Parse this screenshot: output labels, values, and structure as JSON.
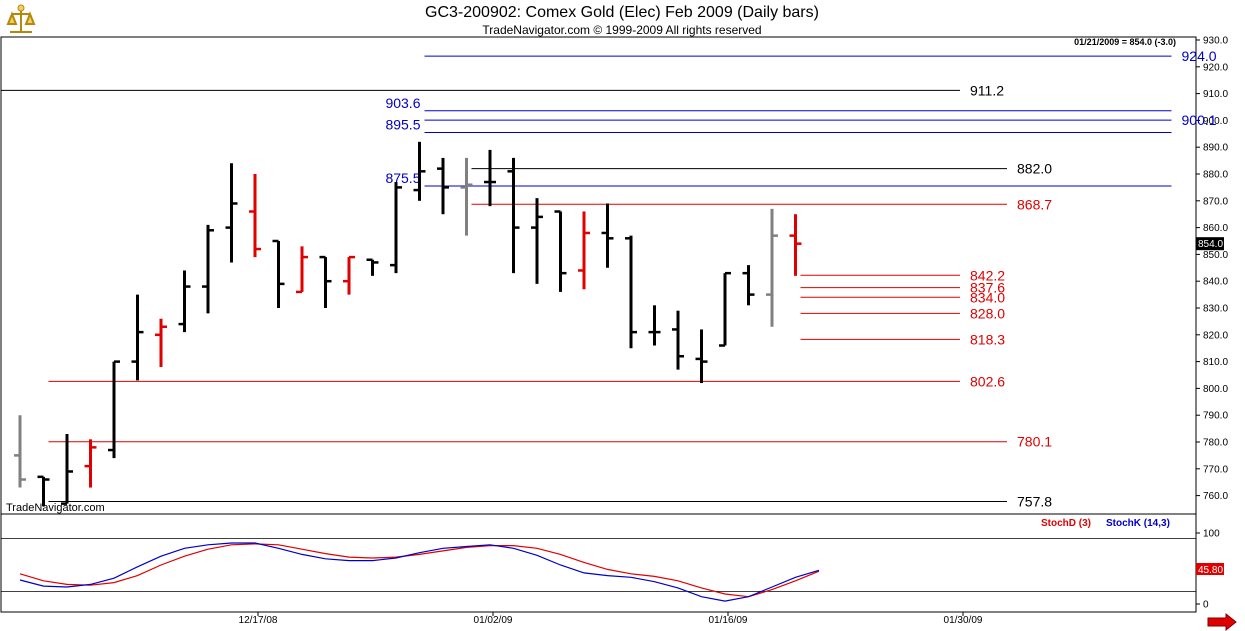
{
  "header": {
    "title": "GC3-200902:  Comex Gold (Elec) Feb 2009  (Daily bars)",
    "subtitle": "TradeNavigator.com © 1999-2009 All rights reserved",
    "watermark": "TradeNavigator.com",
    "quote_readout": "01/21/2009 = 854.0 (-3.0)"
  },
  "colors": {
    "up_bar": "#000000",
    "down_bar": "#e00000",
    "neutral_bar": "#808080",
    "blue_level": "#0000c8",
    "red_level": "#e00000",
    "black_level": "#000000",
    "stoch_d": "#e00000",
    "stoch_k": "#0000c8"
  },
  "chart_data": [
    {
      "type": "ohlc",
      "y_axis_ticks": [
        "930.0",
        "920.0",
        "910.0",
        "900.0",
        "890.0",
        "880.0",
        "870.0",
        "860.0",
        "850.0",
        "840.0",
        "830.0",
        "820.0",
        "810.0",
        "800.0",
        "790.0",
        "780.0",
        "770.0",
        "760.0"
      ],
      "ylim": [
        755,
        933
      ],
      "last_price_label": "854.0",
      "x_date_labels": [
        "12/17/08",
        "01/02/09",
        "01/16/09",
        "01/30/09"
      ],
      "bars": [
        {
          "o": 775,
          "h": 790,
          "l": 763,
          "c": 766,
          "color": "neutral"
        },
        {
          "o": 767,
          "h": 767,
          "l": 756,
          "c": 766,
          "color": "up"
        },
        {
          "o": 757,
          "h": 783,
          "l": 757,
          "c": 769,
          "color": "up"
        },
        {
          "o": 771,
          "h": 781,
          "l": 763,
          "c": 778,
          "color": "down"
        },
        {
          "o": 777,
          "h": 810,
          "l": 774,
          "c": 810,
          "color": "up"
        },
        {
          "o": 810,
          "h": 835,
          "l": 803,
          "c": 821,
          "color": "up"
        },
        {
          "o": 820,
          "h": 826,
          "l": 808,
          "c": 823,
          "color": "down"
        },
        {
          "o": 824,
          "h": 844,
          "l": 821,
          "c": 838,
          "color": "up"
        },
        {
          "o": 838,
          "h": 861,
          "l": 828,
          "c": 859,
          "color": "up"
        },
        {
          "o": 860,
          "h": 884,
          "l": 847,
          "c": 869,
          "color": "up"
        },
        {
          "o": 866,
          "h": 880,
          "l": 849,
          "c": 852,
          "color": "down"
        },
        {
          "o": 855,
          "h": 855,
          "l": 830,
          "c": 839,
          "color": "up"
        },
        {
          "o": 836,
          "h": 853,
          "l": 836,
          "c": 849,
          "color": "down"
        },
        {
          "o": 849,
          "h": 849,
          "l": 830,
          "c": 840,
          "color": "up"
        },
        {
          "o": 840,
          "h": 849,
          "l": 835,
          "c": 849,
          "color": "down"
        },
        {
          "o": 848,
          "h": 848,
          "l": 842,
          "c": 847,
          "color": "up"
        },
        {
          "o": 846,
          "h": 877,
          "l": 843,
          "c": 875,
          "color": "up"
        },
        {
          "o": 874,
          "h": 892,
          "l": 870,
          "c": 881,
          "color": "up"
        },
        {
          "o": 882,
          "h": 886,
          "l": 865,
          "c": 875,
          "color": "up"
        },
        {
          "o": 875,
          "h": 886,
          "l": 857,
          "c": 876,
          "color": "neutral"
        },
        {
          "o": 877,
          "h": 889,
          "l": 868,
          "c": 877,
          "color": "up"
        },
        {
          "o": 881,
          "h": 886,
          "l": 843,
          "c": 860,
          "color": "up"
        },
        {
          "o": 860,
          "h": 871,
          "l": 839,
          "c": 864,
          "color": "up"
        },
        {
          "o": 866,
          "h": 866,
          "l": 836,
          "c": 843,
          "color": "up"
        },
        {
          "o": 844,
          "h": 866,
          "l": 837,
          "c": 858,
          "color": "down"
        },
        {
          "o": 858,
          "h": 869,
          "l": 845,
          "c": 856,
          "color": "up"
        },
        {
          "o": 856,
          "h": 857,
          "l": 815,
          "c": 821,
          "color": "up"
        },
        {
          "o": 821,
          "h": 831,
          "l": 816,
          "c": 821,
          "color": "up"
        },
        {
          "o": 822,
          "h": 829,
          "l": 807,
          "c": 812,
          "color": "up"
        },
        {
          "o": 811,
          "h": 822,
          "l": 802,
          "c": 810,
          "color": "up"
        },
        {
          "o": 816,
          "h": 843,
          "l": 816,
          "c": 843,
          "color": "up"
        },
        {
          "o": 843,
          "h": 846,
          "l": 831,
          "c": 835,
          "color": "up"
        },
        {
          "o": 835,
          "h": 867,
          "l": 823,
          "c": 857,
          "color": "neutral"
        },
        {
          "o": 857,
          "h": 865,
          "l": 842,
          "c": 854,
          "color": "down"
        }
      ],
      "levels": [
        {
          "value": 924.0,
          "label": "924.0",
          "color": "blue",
          "x_start_bar": 17,
          "x_end_bar": 49
        },
        {
          "value": 911.2,
          "label": "911.2",
          "color": "black",
          "x_start_bar": -1,
          "x_end_bar": 40
        },
        {
          "value": 903.6,
          "label": "903.6",
          "label_side": "left",
          "color": "blue",
          "x_start_bar": 17,
          "x_end_bar": 49
        },
        {
          "value": 900.1,
          "label": "900.1",
          "color": "blue",
          "x_start_bar": 17,
          "x_end_bar": 49
        },
        {
          "value": 895.5,
          "label": "895.5",
          "label_side": "left",
          "color": "blue",
          "x_start_bar": 17,
          "x_end_bar": 49
        },
        {
          "value": 882.0,
          "label": "882.0",
          "color": "black",
          "x_start_bar": 19,
          "x_end_bar": 42
        },
        {
          "value": 875.5,
          "label": "875.5",
          "label_side": "left",
          "color": "blue",
          "x_start_bar": 17,
          "x_end_bar": 49
        },
        {
          "value": 868.7,
          "label": "868.7",
          "color": "red",
          "x_start_bar": 19,
          "x_end_bar": 42
        },
        {
          "value": 842.2,
          "label": "842.2",
          "color": "red",
          "x_start_bar": 33,
          "x_end_bar": 40
        },
        {
          "value": 837.6,
          "label": "837.6",
          "color": "red",
          "x_start_bar": 33,
          "x_end_bar": 40
        },
        {
          "value": 834.0,
          "label": "834.0",
          "color": "red",
          "x_start_bar": 33,
          "x_end_bar": 40
        },
        {
          "value": 828.0,
          "label": "828.0",
          "color": "red",
          "x_start_bar": 33,
          "x_end_bar": 40
        },
        {
          "value": 818.3,
          "label": "818.3",
          "color": "red",
          "x_start_bar": 33,
          "x_end_bar": 40
        },
        {
          "value": 802.6,
          "label": "802.6",
          "color": "red",
          "x_start_bar": 1,
          "x_end_bar": 40
        },
        {
          "value": 780.1,
          "label": "780.1",
          "color": "red",
          "x_start_bar": 1,
          "x_end_bar": 42
        },
        {
          "value": 757.8,
          "label": "757.8",
          "color": "black",
          "x_start_bar": 1,
          "x_end_bar": 42
        }
      ]
    },
    {
      "type": "line",
      "title": "",
      "legend": [
        {
          "name": "StochD (3)",
          "color": "red"
        },
        {
          "name": "StochK (14,3)",
          "color": "blue"
        }
      ],
      "y_axis_ticks": [
        "100",
        "0"
      ],
      "ylim": [
        0,
        100
      ],
      "reference_lines": [
        80,
        20
      ],
      "last_value_labels": [
        "45.80"
      ],
      "series": [
        {
          "name": "StochD (3)",
          "values": [
            40,
            32,
            28,
            27,
            30,
            38,
            50,
            60,
            68,
            73,
            74,
            73,
            68,
            63,
            59,
            58,
            59,
            62,
            66,
            70,
            72,
            72,
            69,
            62,
            53,
            45,
            40,
            37,
            32,
            24,
            17,
            14,
            22,
            32,
            43
          ]
        },
        {
          "name": "StochK (14,3)",
          "values": [
            33,
            26,
            25,
            28,
            35,
            48,
            60,
            69,
            73,
            75,
            75,
            69,
            62,
            57,
            55,
            55,
            58,
            64,
            69,
            71,
            73,
            69,
            61,
            50,
            41,
            38,
            36,
            31,
            24,
            14,
            9,
            14,
            25,
            36,
            44
          ]
        }
      ]
    }
  ]
}
